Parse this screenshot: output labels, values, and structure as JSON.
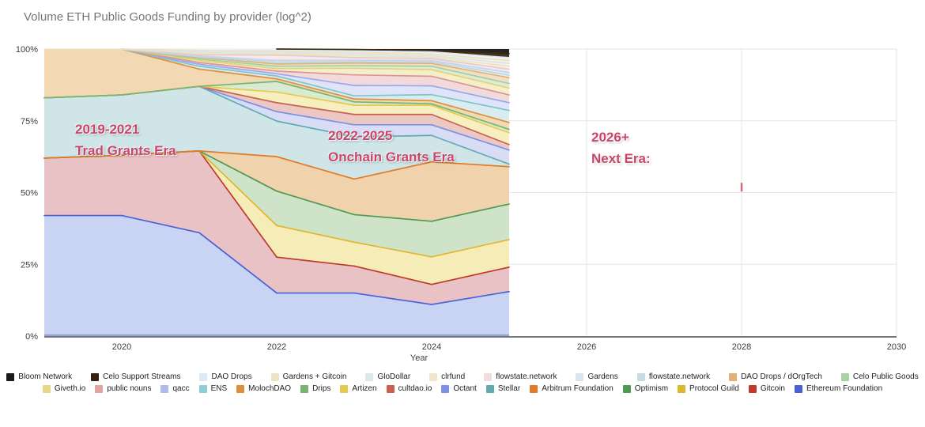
{
  "title": "Volume ETH Public Goods Funding by provider (log^2)",
  "chart_data": {
    "type": "area",
    "stacking": "percent",
    "x": [
      2019,
      2020,
      2021,
      2022,
      2023,
      2024,
      2025
    ],
    "xlabel": "Year",
    "x_range": [
      2019,
      2030
    ],
    "x_ticks": [
      2020,
      2022,
      2024,
      2026,
      2028,
      2030
    ],
    "y_ticks": [
      {
        "pct": 0,
        "label": "0%"
      },
      {
        "pct": 25,
        "label": "25%"
      },
      {
        "pct": 50,
        "label": "50%"
      },
      {
        "pct": 75,
        "label": "75%"
      },
      {
        "pct": 100,
        "label": "100%"
      }
    ],
    "grid": true,
    "legend_position": "bottom",
    "note": "values are cumulative stacked percentages (band top), bottom series first",
    "series": [
      {
        "name": "Ethereum Foundation",
        "stroke": "#4862d6",
        "fill": "#c9d4f5",
        "cum": [
          42,
          42,
          36,
          15,
          15,
          11,
          15.5
        ]
      },
      {
        "name": "Gitcoin",
        "stroke": "#c0392b",
        "fill": "#e8c2c4",
        "cum": [
          62,
          63,
          64.5,
          27.5,
          24.4,
          18,
          24
        ]
      },
      {
        "name": "Protocol Guild",
        "stroke": "#e0b62e",
        "fill": "#f5ecb8",
        "cum": [
          62,
          63,
          64.5,
          38.5,
          32.7,
          27.6,
          33.6
        ]
      },
      {
        "name": "Optimism",
        "stroke": "#4e9a51",
        "fill": "#cfe3c8",
        "cum": [
          62,
          63,
          64.5,
          50.5,
          42.3,
          40,
          46
        ]
      },
      {
        "name": "Arbitrum Foundation",
        "stroke": "#e07b28",
        "fill": "#f0d2ac",
        "cum": [
          62,
          63,
          64.5,
          62.5,
          54.7,
          60.7,
          59
        ]
      },
      {
        "name": "Stellar",
        "stroke": "#62aab2",
        "fill": "#cfe5e8",
        "cum": [
          83,
          84,
          87,
          74.9,
          69.4,
          69.9,
          59.9
        ]
      },
      {
        "name": "Octant",
        "stroke": "#7c90e8",
        "fill": "#d8ddf5",
        "cum": [
          83,
          84,
          87,
          78.2,
          73.6,
          73.6,
          64.8
        ]
      },
      {
        "name": "cultdao.io",
        "stroke": "#cc5f4e",
        "fill": "#ecc8c2",
        "cum": [
          83,
          84,
          87,
          81.3,
          77.2,
          77.2,
          66.7
        ]
      },
      {
        "name": "Artizen",
        "stroke": "#e6c94f",
        "fill": "#f7efc0",
        "cum": [
          83,
          84,
          87,
          85,
          80.4,
          80.4,
          70.8
        ]
      },
      {
        "name": "Drips",
        "stroke": "#76b56e",
        "fill": "#d9ead2",
        "cum": [
          83,
          84,
          87,
          88.7,
          81.6,
          80.9,
          72
        ]
      },
      {
        "name": "MolochDAO",
        "stroke": "#dd8f3e",
        "fill": "#f2d9b4",
        "cum": [
          100,
          100,
          93,
          89.6,
          82.6,
          82,
          74.4
        ]
      },
      {
        "name": "ENS",
        "stroke": "#7fc4cc",
        "fill": "#d9edf0",
        "cum": [
          100,
          100,
          94,
          90.6,
          83.7,
          84.1,
          78.6
        ]
      },
      {
        "name": "qacc",
        "stroke": "#99a8ee",
        "fill": "#dfe4f8",
        "cum": [
          100,
          100,
          94.7,
          91.4,
          87.3,
          87.2,
          81.3
        ]
      },
      {
        "name": "public nouns",
        "stroke": "#dd9494",
        "fill": "#f2dada",
        "cum": [
          100,
          100,
          95.3,
          92.3,
          91,
          90.5,
          84
        ]
      },
      {
        "name": "Giveth.io",
        "stroke": "#e3d27a",
        "fill": "#f5eecb",
        "cum": [
          100,
          100,
          96,
          93.2,
          93.3,
          92.8,
          86.4
        ]
      },
      {
        "name": "Celo Public Goods",
        "stroke": "#a4cfa0",
        "fill": "#dcecd9",
        "cum": [
          100,
          100,
          96.5,
          94,
          94.2,
          94,
          88
        ]
      },
      {
        "name": "DAO Drops / dOrgTech",
        "stroke": "#e2b175",
        "fill": "#f2dfc4",
        "cum": [
          100,
          100,
          97,
          94.8,
          95.1,
          95,
          90
        ]
      },
      {
        "name": "flowstate.network",
        "stroke": "#bcd8de",
        "fill": "#e3eff2",
        "cum": [
          100,
          100,
          97.3,
          95.4,
          95.6,
          95.5,
          90.9
        ]
      },
      {
        "name": "Gardens",
        "stroke": "#c3d4f0",
        "fill": "#e7eef9",
        "cum": [
          100,
          100,
          97.6,
          96,
          96.1,
          96,
          91.8
        ]
      },
      {
        "name": "flowstate.network",
        "stroke": "#e8c8c8",
        "fill": "#f7e9e9",
        "cum": [
          100,
          100,
          98,
          97.9,
          97,
          96.7,
          93
        ]
      },
      {
        "name": "clrfund",
        "stroke": "#ece3c0",
        "fill": "#f9f4e2",
        "cum": [
          100,
          100,
          98.5,
          98.4,
          97.6,
          97.2,
          94
        ]
      },
      {
        "name": "GloDollar",
        "stroke": "#d8e4e8",
        "fill": "#eef4f6",
        "cum": [
          100,
          100,
          99,
          98.9,
          98.2,
          97.7,
          95
        ]
      },
      {
        "name": "Gardens + Gitcoin",
        "stroke": "#ece0c4",
        "fill": "#f8f2e0",
        "cum": [
          100,
          100,
          99.5,
          99.4,
          98.8,
          98.3,
          96
        ]
      },
      {
        "name": "DAO Drops",
        "stroke": "#dce8f2",
        "fill": "#eff5fa",
        "cum": [
          100,
          100,
          100,
          100,
          99.4,
          99,
          97
        ]
      },
      {
        "name": "Celo Support Streams",
        "stroke": "#3a2a14",
        "fill": "#46341a",
        "cum": [
          100,
          100,
          100,
          100,
          99.85,
          99.5,
          98.4
        ]
      },
      {
        "name": "Bloom Network",
        "stroke": "#1a1a1a",
        "fill": "#242424",
        "cum": [
          100,
          100,
          100,
          100,
          100,
          100,
          100
        ]
      }
    ],
    "annotations": [
      {
        "line1": "2019-2021",
        "line2": "Trad Grants Era",
        "x": 95,
        "y": 150
      },
      {
        "line1": "2022-2025",
        "line2": "Onchain Grants Era",
        "x": 415,
        "y": 158
      },
      {
        "line1": "2026+",
        "line2": "Next Era:",
        "x": 748,
        "y": 160
      }
    ],
    "marker": {
      "x_year": 2028,
      "pct": 52,
      "color": "#c9535e"
    }
  },
  "legend": {
    "rows": [
      [
        {
          "label": "Bloom Network",
          "color": "#1a1a1a"
        },
        {
          "label": "Celo Support Streams",
          "color": "#33230c"
        },
        {
          "label": "DAO Drops",
          "color": "#dce8f2"
        },
        {
          "label": "Gardens + Gitcoin",
          "color": "#eee3c3"
        },
        {
          "label": "GloDollar",
          "color": "#dde8ec"
        },
        {
          "label": "clrfund",
          "color": "#f0e8cb"
        },
        {
          "label": "flowstate.network",
          "color": "#f0dede"
        },
        {
          "label": "Gardens",
          "color": "#d9e5f5"
        },
        {
          "label": "flowstate.network",
          "color": "#c5dde2"
        },
        {
          "label": "DAO Drops / dOrgTech",
          "color": "#e2b175"
        },
        {
          "label": "Celo Public Goods",
          "color": "#a8d1a4"
        }
      ],
      [
        {
          "label": "Giveth.io",
          "color": "#ead688"
        },
        {
          "label": "public nouns",
          "color": "#e2a4a1"
        },
        {
          "label": "qacc",
          "color": "#aebbf0"
        },
        {
          "label": "ENS",
          "color": "#8ecdd5"
        },
        {
          "label": "MolochDAO",
          "color": "#dd8f3e"
        },
        {
          "label": "Drips",
          "color": "#76b56e"
        },
        {
          "label": "Artizen",
          "color": "#e6c94f"
        },
        {
          "label": "cultdao.io",
          "color": "#cc5f4e"
        },
        {
          "label": "Octant",
          "color": "#7c90e8"
        },
        {
          "label": "Stellar",
          "color": "#62aab2"
        },
        {
          "label": "Arbitrum Foundation",
          "color": "#e07b28"
        },
        {
          "label": "Optimism",
          "color": "#4e9a51"
        },
        {
          "label": "Protocol Guild",
          "color": "#e0b62e"
        },
        {
          "label": "Gitcoin",
          "color": "#c0392b"
        },
        {
          "label": "Ethereum Foundation",
          "color": "#4862d6"
        }
      ]
    ]
  }
}
